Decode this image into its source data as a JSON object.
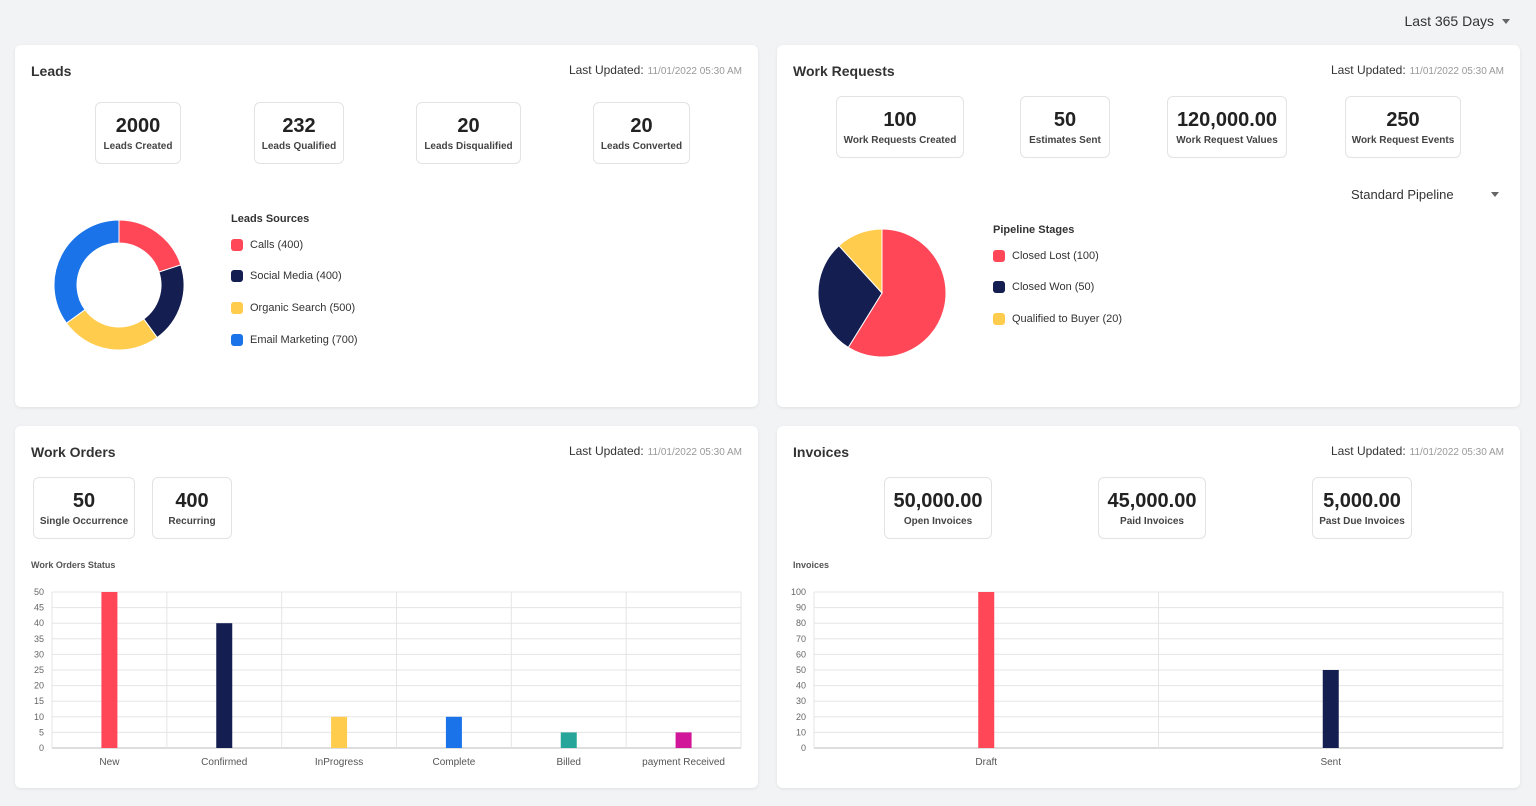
{
  "header": {
    "range_label": "Last 365 Days"
  },
  "colors": {
    "red": "#ff4757",
    "navy": "#141e50",
    "yellow": "#ffcc4d",
    "blue": "#1a73e8",
    "green": "#26a69a",
    "magenta": "#d1169a"
  },
  "leads": {
    "title": "Leads",
    "updated_label": "Last Updated:",
    "updated_time": "11/01/2022 05:30 AM",
    "stats": [
      {
        "value": "2000",
        "label": "Leads Created"
      },
      {
        "value": "232",
        "label": "Leads Qualified"
      },
      {
        "value": "20",
        "label": "Leads Disqualified"
      },
      {
        "value": "20",
        "label": "Leads Converted"
      }
    ],
    "legend_title": "Leads Sources",
    "legend": [
      {
        "label": "Calls (400)",
        "color": "#ff4757"
      },
      {
        "label": "Social Media (400)",
        "color": "#141e50"
      },
      {
        "label": "Organic Search (500)",
        "color": "#ffcc4d"
      },
      {
        "label": "Email Marketing (700)",
        "color": "#1a73e8"
      }
    ]
  },
  "work_requests": {
    "title": "Work Requests",
    "updated_label": "Last Updated:",
    "updated_time": "11/01/2022 05:30 AM",
    "stats": [
      {
        "value": "100",
        "label": "Work Requests Created"
      },
      {
        "value": "50",
        "label": "Estimates Sent"
      },
      {
        "value": "120,000.00",
        "label": "Work Request Values"
      },
      {
        "value": "250",
        "label": "Work Request Events"
      }
    ],
    "pipeline_select": "Standard Pipeline",
    "legend_title": "Pipeline Stages",
    "legend": [
      {
        "label": "Closed Lost (100)",
        "color": "#ff4757"
      },
      {
        "label": "Closed Won (50)",
        "color": "#141e50"
      },
      {
        "label": "Qualified to Buyer (20)",
        "color": "#ffcc4d"
      }
    ]
  },
  "work_orders": {
    "title": "Work Orders",
    "updated_label": "Last Updated:",
    "updated_time": "11/01/2022 05:30 AM",
    "stats": [
      {
        "value": "50",
        "label": "Single Occurrence"
      },
      {
        "value": "400",
        "label": "Recurring"
      }
    ],
    "chart_label": "Work Orders Status"
  },
  "invoices": {
    "title": "Invoices",
    "updated_label": "Last Updated:",
    "updated_time": "11/01/2022 05:30 AM",
    "stats": [
      {
        "value": "50,000.00",
        "label": "Open Invoices"
      },
      {
        "value": "45,000.00",
        "label": "Paid Invoices"
      },
      {
        "value": "5,000.00",
        "label": "Past Due Invoices"
      }
    ],
    "chart_label": "Invoices"
  },
  "chart_data": [
    {
      "type": "pie",
      "variant": "donut",
      "categories": [
        "Calls",
        "Social Media",
        "Organic Search",
        "Email Marketing"
      ],
      "values": [
        400,
        400,
        500,
        700
      ],
      "colors": [
        "#ff4757",
        "#141e50",
        "#ffcc4d",
        "#1a73e8"
      ]
    },
    {
      "type": "pie",
      "categories": [
        "Closed Lost",
        "Closed Won",
        "Qualified to Buyer"
      ],
      "values": [
        100,
        50,
        20
      ],
      "colors": [
        "#ff4757",
        "#141e50",
        "#ffcc4d"
      ]
    },
    {
      "type": "bar",
      "categories": [
        "New",
        "Confirmed",
        "InProgress",
        "Complete",
        "Billed",
        "payment Received"
      ],
      "values": [
        50,
        40,
        10,
        10,
        5,
        5
      ],
      "colors": [
        "#ff4757",
        "#141e50",
        "#ffcc4d",
        "#1a73e8",
        "#26a69a",
        "#d1169a"
      ],
      "ylim": [
        0,
        50
      ],
      "yticks": [
        0,
        5,
        10,
        15,
        20,
        25,
        30,
        35,
        40,
        45,
        50
      ],
      "grid": true
    },
    {
      "type": "bar",
      "categories": [
        "Draft",
        "Sent"
      ],
      "values": [
        100,
        50
      ],
      "colors": [
        "#ff4757",
        "#141e50"
      ],
      "ylim": [
        0,
        100
      ],
      "yticks": [
        0,
        10,
        20,
        30,
        40,
        50,
        60,
        70,
        80,
        90,
        100
      ],
      "grid": true
    }
  ]
}
